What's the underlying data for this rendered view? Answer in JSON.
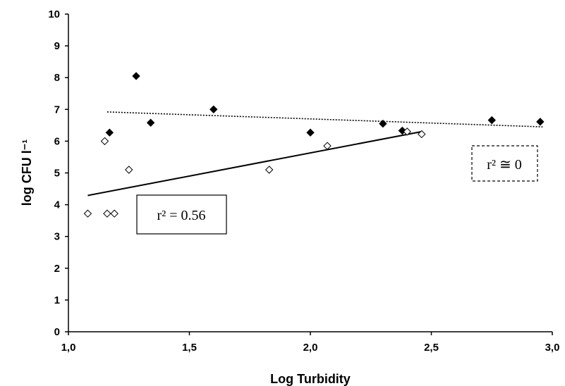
{
  "chart_data": {
    "type": "scatter",
    "title": "",
    "xlabel": "Log Turbidity",
    "ylabel": "log CFU l⁻¹",
    "xlim": [
      1.0,
      3.0
    ],
    "ylim": [
      0,
      10
    ],
    "x_ticks": [
      "1,0",
      "1,5",
      "2,0",
      "2,5",
      "3,0"
    ],
    "y_ticks": [
      "0",
      "1",
      "2",
      "3",
      "4",
      "5",
      "6",
      "7",
      "8",
      "9",
      "10"
    ],
    "grid": false,
    "series": [
      {
        "marker": "filled-diamond",
        "color": "#000000",
        "points": [
          {
            "x": 1.17,
            "y": 6.27
          },
          {
            "x": 1.28,
            "y": 8.05
          },
          {
            "x": 1.34,
            "y": 6.58
          },
          {
            "x": 1.6,
            "y": 7.0
          },
          {
            "x": 2.0,
            "y": 6.27
          },
          {
            "x": 2.3,
            "y": 6.55
          },
          {
            "x": 2.38,
            "y": 6.33
          },
          {
            "x": 2.75,
            "y": 6.66
          },
          {
            "x": 2.95,
            "y": 6.61
          }
        ],
        "trendline": {
          "style": "dotted",
          "x": [
            1.16,
            2.96
          ],
          "y": [
            6.92,
            6.45
          ]
        },
        "annotation": {
          "text": "r² ≅ 0",
          "box": "dashed"
        }
      },
      {
        "marker": "open-diamond",
        "color": "#000000",
        "points": [
          {
            "x": 1.08,
            "y": 3.72
          },
          {
            "x": 1.15,
            "y": 6.0
          },
          {
            "x": 1.16,
            "y": 3.72
          },
          {
            "x": 1.19,
            "y": 3.72
          },
          {
            "x": 1.25,
            "y": 5.1
          },
          {
            "x": 1.83,
            "y": 5.1
          },
          {
            "x": 2.07,
            "y": 5.85
          },
          {
            "x": 2.4,
            "y": 6.3
          },
          {
            "x": 2.46,
            "y": 6.22
          }
        ],
        "trendline": {
          "style": "solid",
          "x": [
            1.08,
            2.46
          ],
          "y": [
            4.29,
            6.3
          ]
        },
        "annotation": {
          "text": "r² = 0.56",
          "box": "solid"
        }
      }
    ]
  }
}
